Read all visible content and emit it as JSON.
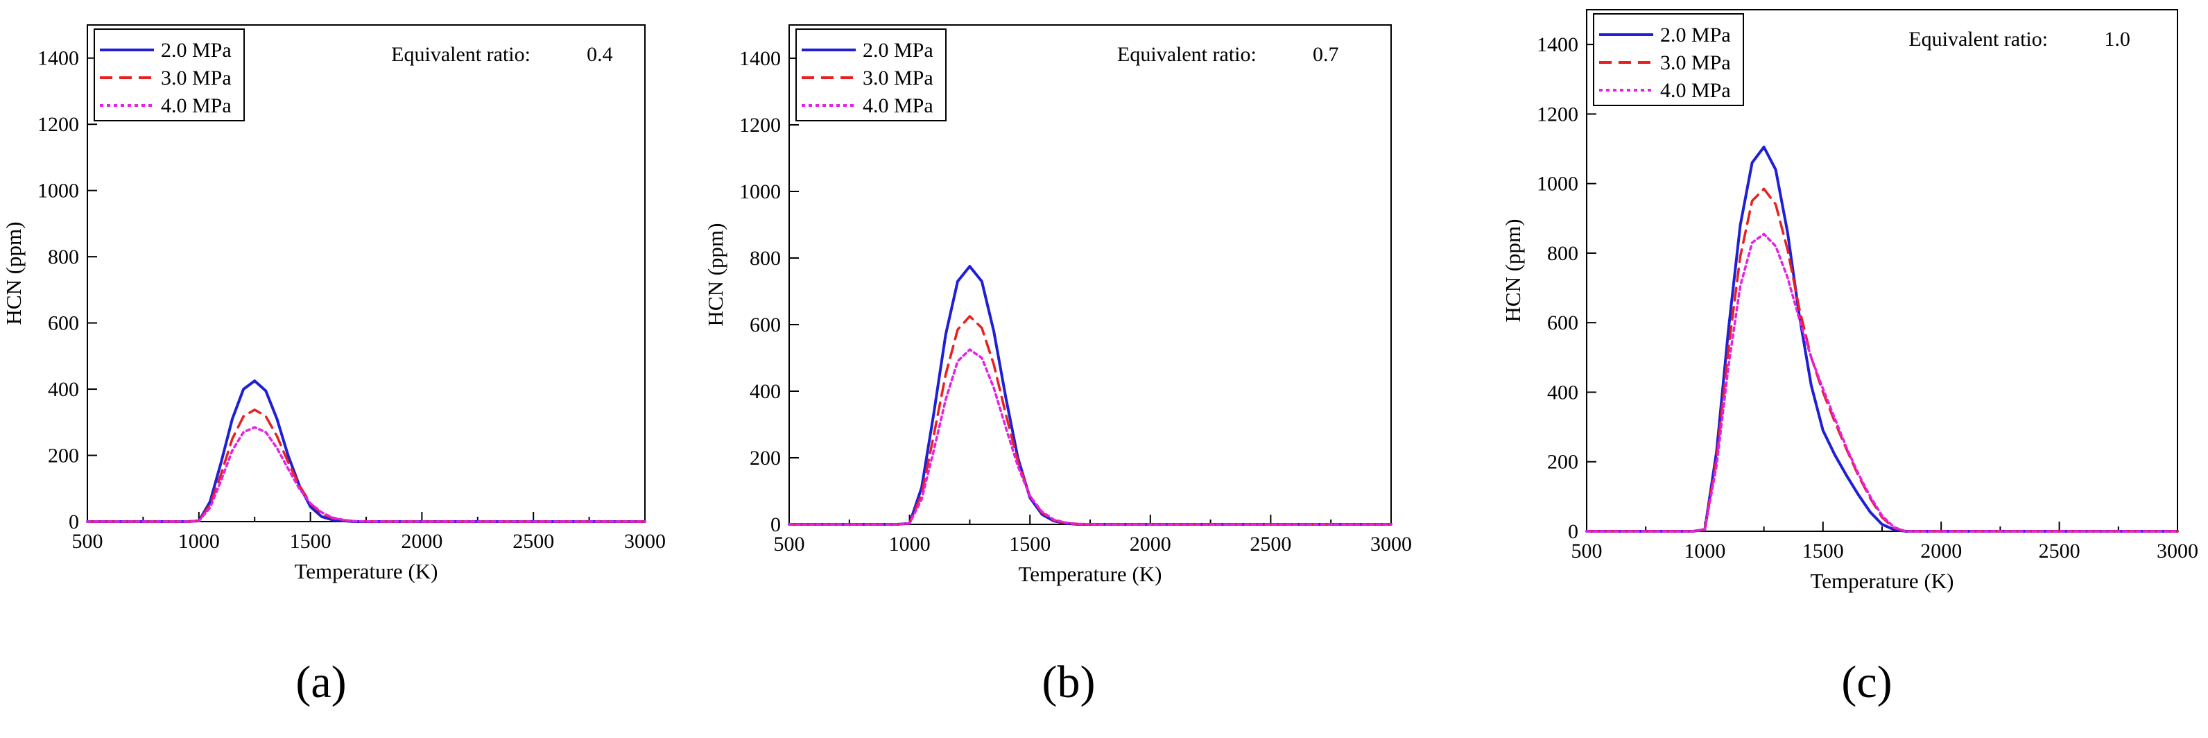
{
  "figure": {
    "panel_labels": [
      "(a)",
      "(b)",
      "(c)"
    ]
  },
  "chart_data": [
    {
      "type": "line",
      "panel": "(a)",
      "annotation_label": "Equivalent ratio:",
      "annotation_value": "0.4",
      "xlabel": "Temperature (K)",
      "ylabel": "HCN (ppm)",
      "xlim": [
        500,
        3000
      ],
      "ylim": [
        0,
        1500
      ],
      "xticks": [
        500,
        1000,
        1500,
        2000,
        2500,
        3000
      ],
      "yticks": [
        0,
        200,
        400,
        600,
        800,
        1000,
        1200,
        1400
      ],
      "grid": false,
      "legend_position": "top-left",
      "x": [
        500,
        950,
        1000,
        1050,
        1100,
        1150,
        1200,
        1250,
        1300,
        1350,
        1400,
        1450,
        1500,
        1550,
        1600,
        1650,
        1700,
        1800,
        3000
      ],
      "series": [
        {
          "name": "2.0 MPa",
          "color": "#1f1fd6",
          "style": "solid",
          "values": [
            0,
            0,
            2,
            60,
            180,
            310,
            400,
            425,
            395,
            310,
            200,
            110,
            45,
            15,
            5,
            2,
            0,
            0,
            0
          ]
        },
        {
          "name": "3.0 MPa",
          "color": "#e8201f",
          "style": "dashed",
          "values": [
            0,
            0,
            2,
            50,
            145,
            250,
            318,
            338,
            318,
            258,
            180,
            110,
            55,
            25,
            10,
            4,
            1,
            0,
            0
          ]
        },
        {
          "name": "4.0 MPa",
          "color": "#e81fe8",
          "style": "dotted",
          "values": [
            0,
            0,
            2,
            42,
            125,
            215,
            270,
            285,
            270,
            222,
            160,
            100,
            55,
            28,
            12,
            5,
            1,
            0,
            0
          ]
        }
      ]
    },
    {
      "type": "line",
      "panel": "(b)",
      "annotation_label": "Equivalent ratio:",
      "annotation_value": "0.7",
      "xlabel": "Temperature (K)",
      "ylabel": "HCN (ppm)",
      "xlim": [
        500,
        3000
      ],
      "ylim": [
        0,
        1500
      ],
      "xticks": [
        500,
        1000,
        1500,
        2000,
        2500,
        3000
      ],
      "yticks": [
        0,
        200,
        400,
        600,
        800,
        1000,
        1200,
        1400
      ],
      "grid": false,
      "legend_position": "top-left",
      "x": [
        500,
        950,
        1000,
        1050,
        1100,
        1150,
        1200,
        1250,
        1300,
        1350,
        1400,
        1450,
        1500,
        1550,
        1600,
        1650,
        1700,
        1800,
        3000
      ],
      "series": [
        {
          "name": "2.0 MPa",
          "color": "#1f1fd6",
          "style": "solid",
          "values": [
            0,
            0,
            3,
            110,
            330,
            570,
            730,
            775,
            730,
            580,
            380,
            200,
            80,
            30,
            10,
            3,
            0,
            0,
            0
          ]
        },
        {
          "name": "3.0 MPa",
          "color": "#e8201f",
          "style": "dashed",
          "values": [
            0,
            0,
            3,
            90,
            265,
            450,
            585,
            625,
            590,
            480,
            330,
            190,
            85,
            35,
            12,
            4,
            1,
            0,
            0
          ]
        },
        {
          "name": "4.0 MPa",
          "color": "#e81fe8",
          "style": "dotted",
          "values": [
            0,
            0,
            3,
            75,
            220,
            375,
            490,
            525,
            500,
            410,
            290,
            175,
            85,
            38,
            14,
            5,
            1,
            0,
            0
          ]
        }
      ]
    },
    {
      "type": "line",
      "panel": "(c)",
      "annotation_label": "Equivalent ratio:",
      "annotation_value": "1.0",
      "xlabel": "Temperature (K)",
      "ylabel": "HCN (ppm)",
      "xlim": [
        500,
        3000
      ],
      "ylim": [
        0,
        1500
      ],
      "xticks": [
        500,
        1000,
        1500,
        2000,
        2500,
        3000
      ],
      "yticks": [
        0,
        200,
        400,
        600,
        800,
        1000,
        1200,
        1400
      ],
      "grid": false,
      "legend_position": "top-left",
      "x": [
        500,
        950,
        1000,
        1050,
        1100,
        1150,
        1200,
        1250,
        1300,
        1350,
        1400,
        1450,
        1500,
        1550,
        1600,
        1650,
        1700,
        1750,
        1800,
        1850,
        3000
      ],
      "series": [
        {
          "name": "2.0 MPa",
          "color": "#1f1fd6",
          "style": "solid",
          "values": [
            0,
            0,
            5,
            230,
            580,
            880,
            1060,
            1105,
            1040,
            860,
            620,
            420,
            290,
            220,
            160,
            105,
            55,
            20,
            5,
            0,
            0
          ]
        },
        {
          "name": "3.0 MPa",
          "color": "#e8201f",
          "style": "dashed",
          "values": [
            0,
            0,
            5,
            210,
            525,
            790,
            950,
            985,
            940,
            810,
            640,
            500,
            400,
            315,
            235,
            160,
            95,
            40,
            10,
            0,
            0
          ]
        },
        {
          "name": "4.0 MPa",
          "color": "#e81fe8",
          "style": "dotted",
          "values": [
            0,
            0,
            5,
            190,
            475,
            705,
            830,
            855,
            820,
            730,
            610,
            500,
            410,
            325,
            240,
            165,
            100,
            45,
            12,
            0,
            0
          ]
        }
      ]
    }
  ]
}
